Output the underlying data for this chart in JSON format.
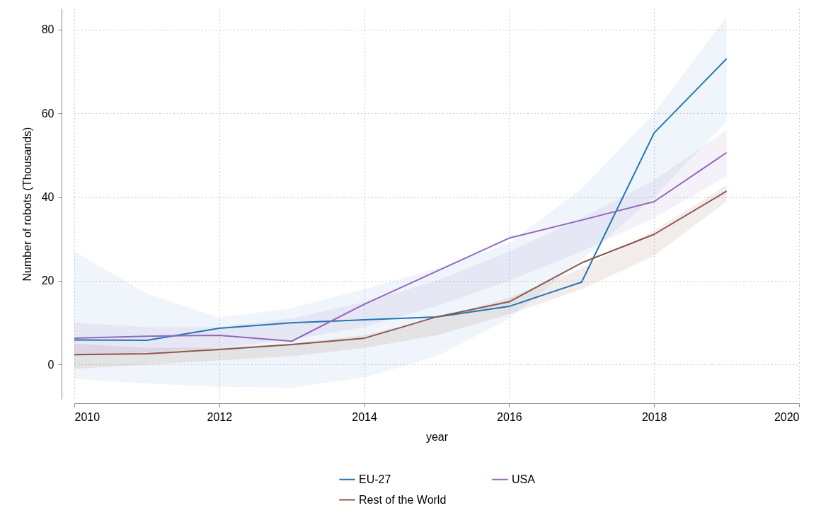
{
  "chart_data": {
    "type": "line",
    "xlabel": "year",
    "ylabel": "Number of robots (Thousands)",
    "x": [
      2010,
      2011,
      2012,
      2013,
      2014,
      2015,
      2016,
      2017,
      2018,
      2019
    ],
    "xlim": [
      2010,
      2020
    ],
    "xticks": [
      2010,
      2012,
      2014,
      2016,
      2018,
      2020
    ],
    "ylim": [
      -8.2,
      85
    ],
    "yticks": [
      0,
      20,
      40,
      60,
      80
    ],
    "grid": true,
    "legend": "bottom",
    "line_style": "solid",
    "series": [
      {
        "name": "EU-27",
        "color": "#1f77b4",
        "values": [
          5.9,
          5.8,
          8.7,
          10.0,
          10.7,
          11.4,
          13.9,
          19.7,
          55.3,
          73.0
        ],
        "lower": [
          -3.4,
          -4.5,
          -5.3,
          -5.5,
          -3,
          2,
          11,
          25,
          40,
          58
        ],
        "upper": [
          27,
          17,
          11.2,
          13.5,
          18,
          23,
          29,
          42,
          60,
          83
        ]
      },
      {
        "name": "USA",
        "color": "#9467bd",
        "values": [
          6.3,
          6.8,
          7.0,
          5.6,
          14.4,
          22.3,
          30.2,
          34.5,
          38.9,
          50.6
        ],
        "lower": [
          2,
          3,
          4,
          6,
          9,
          14,
          20,
          27,
          35,
          45
        ],
        "upper": [
          10,
          9,
          9,
          11,
          15,
          20,
          27,
          35,
          44,
          56
        ]
      },
      {
        "name": "Rest of the World",
        "color": "#8c564b",
        "values": [
          2.4,
          2.6,
          3.6,
          4.8,
          6.3,
          11.4,
          15.0,
          24.3,
          31.1,
          41.4
        ],
        "lower": [
          -1,
          0,
          1,
          2,
          4,
          7,
          12,
          18,
          26,
          39
        ],
        "upper": [
          5,
          4,
          4,
          5,
          7,
          11,
          16,
          23,
          32,
          42.8
        ]
      }
    ]
  }
}
